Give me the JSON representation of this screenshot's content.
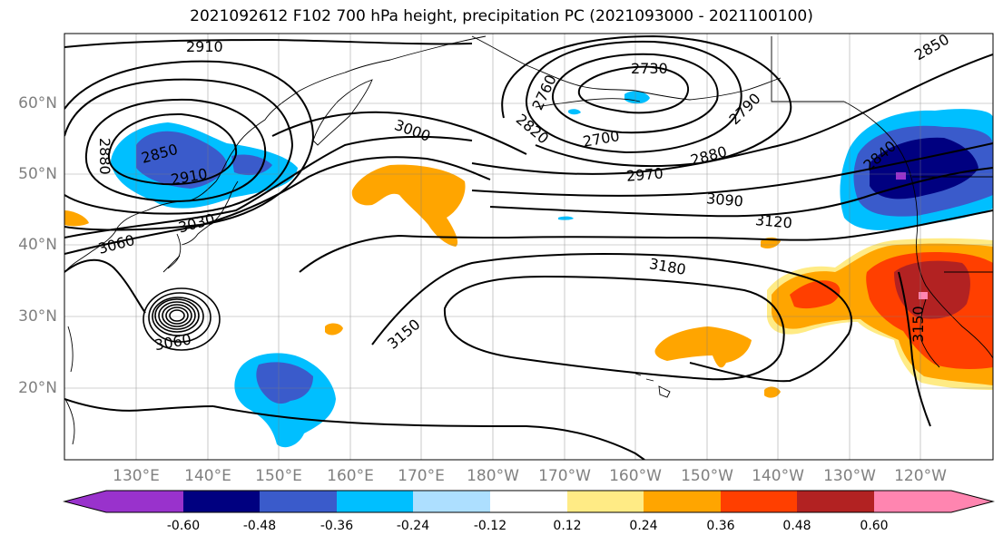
{
  "title": "2021092612 F102 700 hPa height, precipitation PC (2021093000 - 2021100100)",
  "lat_labels": [
    "60°N",
    "50°N",
    "40°N",
    "30°N",
    "20°N"
  ],
  "lon_labels": [
    "130°E",
    "140°E",
    "150°E",
    "160°E",
    "170°E",
    "180°W",
    "170°W",
    "160°W",
    "150°W",
    "140°W",
    "130°W",
    "120°W"
  ],
  "contour_labels": [
    "2910",
    "2880",
    "2850",
    "2910",
    "3030",
    "3060",
    "3000",
    "2730",
    "2760",
    "2790",
    "2820",
    "2700",
    "2880",
    "2970",
    "3090",
    "3120",
    "3180",
    "3150",
    "3150",
    "3060",
    "2840",
    "2850"
  ],
  "colorbar": {
    "tick_labels": [
      "-0.60",
      "-0.48",
      "-0.36",
      "-0.24",
      "-0.12",
      "0.12",
      "0.24",
      "0.36",
      "0.48",
      "0.60"
    ],
    "colors": [
      "#9932CC",
      "#000080",
      "#3A5BCB",
      "#00BFFF",
      "#ADDFFF",
      "#FFFFFF",
      "#FFEB85",
      "#FFA500",
      "#FF3F00",
      "#B22222",
      "#FF85B0"
    ]
  },
  "colors": {
    "neg_light": "#00BFFF",
    "neg_mid": "#3A5BCB",
    "neg_dark": "#000080",
    "neg_extreme": "#9932CC",
    "pos_pale": "#FFEB85",
    "pos_orange": "#FFA500",
    "pos_red": "#FF3F00",
    "pos_dark": "#B22222",
    "pos_pink": "#FF85B0"
  }
}
